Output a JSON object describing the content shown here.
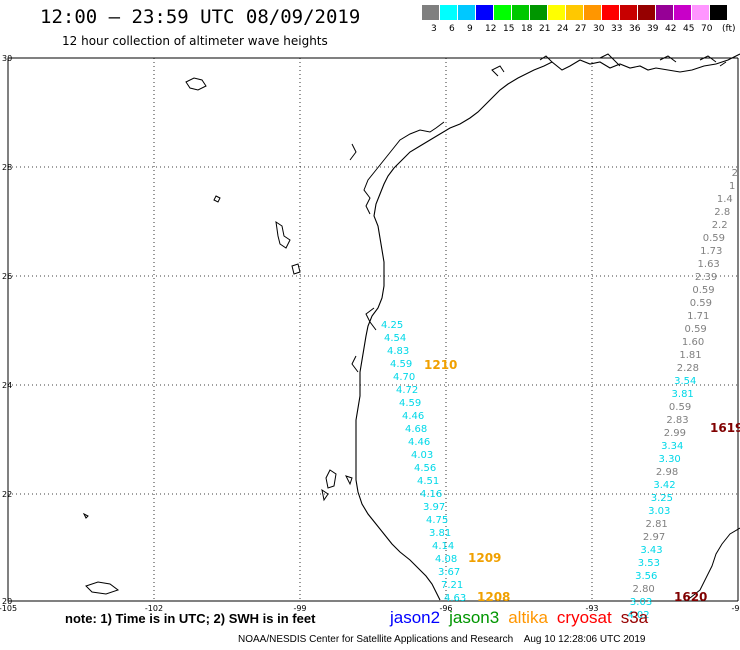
{
  "header": {
    "title": "12:00 – 23:59 UTC 08/09/2019",
    "subtitle": "12 hour collection of altimeter wave heights"
  },
  "legend": {
    "labels": [
      "3",
      "6",
      "9",
      "12",
      "15",
      "18",
      "21",
      "24",
      "27",
      "30",
      "33",
      "36",
      "39",
      "42",
      "45",
      "70",
      "(ft)"
    ],
    "colors": [
      "#7f7f7f",
      "#00ffff",
      "#00c8ff",
      "#0000ff",
      "#00ff00",
      "#00c800",
      "#009600",
      "#ffff00",
      "#ffc800",
      "#ff9600",
      "#ff0000",
      "#c80000",
      "#960000",
      "#960096",
      "#c800c8",
      "#ff96ff",
      "#000000"
    ]
  },
  "axes": {
    "x_labels": [
      "-105",
      "-102",
      "-99",
      "-96",
      "-93",
      "-90"
    ],
    "y_labels": [
      "30",
      "28",
      "26",
      "24",
      "22",
      "20"
    ]
  },
  "passes": [
    {
      "color": "#00d8e8",
      "values": [
        "4.25",
        "4.54",
        "4.83",
        "4.59",
        "4.70",
        "4.72",
        "4.59",
        "4.46",
        "4.68",
        "4.46",
        "4.03",
        "4.56",
        "4.51",
        "4.16",
        "3.97",
        "4.75",
        "3.81",
        "4.14",
        "4.08",
        "3.67",
        "7.21",
        "4.63"
      ]
    },
    {
      "color": "#808080",
      "values": [
        "2",
        "1",
        "1.4",
        "2.8",
        "2.2",
        "0.59",
        "1.73",
        "1.63",
        "2.39",
        "0.59",
        "0.59",
        "1.71",
        "0.59",
        "1.60",
        "1.81",
        "2.28"
      ]
    },
    {
      "color": "#00d8e8",
      "values": [
        "3.54",
        "3.81"
      ]
    },
    {
      "color": "#808080",
      "values": [
        "0.59",
        "2.83",
        "2.99"
      ]
    },
    {
      "color": "#00d8e8",
      "values": [
        "3.34",
        "3.30"
      ]
    },
    {
      "color": "#808080",
      "values": [
        "2.98"
      ]
    },
    {
      "color": "#00d8e8",
      "values": [
        "3.42",
        "3.25",
        "3.03"
      ]
    },
    {
      "color": "#808080",
      "values": [
        "2.81",
        "2.97"
      ]
    },
    {
      "color": "#00d8e8",
      "values": [
        "3.43",
        "3.53",
        "3.56"
      ]
    },
    {
      "color": "#808080",
      "values": [
        "2.80"
      ]
    },
    {
      "color": "#00d8e8",
      "values": [
        "3.03",
        "4.02"
      ]
    }
  ],
  "time_labels": [
    {
      "text": "1210",
      "color": "#f0a000"
    },
    {
      "text": "1209",
      "color": "#f0a000"
    },
    {
      "text": "1208",
      "color": "#f0a000"
    },
    {
      "text": "1619",
      "color": "#800000"
    },
    {
      "text": "1620",
      "color": "#800000"
    }
  ],
  "footer": {
    "note": "note:  1) Time is in UTC;  2) SWH is in feet",
    "satellites": [
      {
        "name": "jason2",
        "color": "#0000ff"
      },
      {
        "name": "jason3",
        "color": "#009600"
      },
      {
        "name": "altika",
        "color": "#ff9600"
      },
      {
        "name": "cryosat",
        "color": "#ff0000"
      },
      {
        "name": "s3a",
        "color": "#960000"
      }
    ],
    "credit": "NOAA/NESDIS Center for Satellite Applications and Research    Aug 10 12:28:06 UTC 2019"
  }
}
